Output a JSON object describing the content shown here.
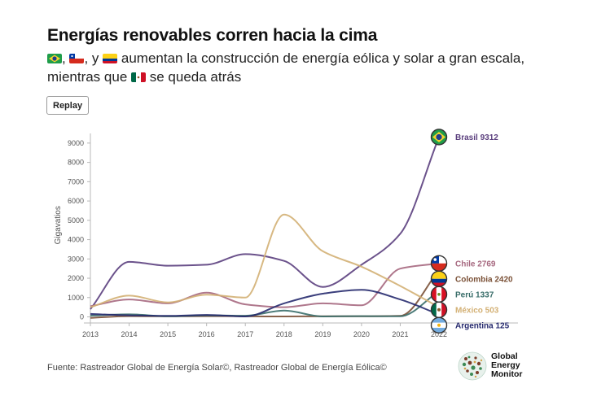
{
  "header": {
    "title": "Energías renovables corren hacia la cima",
    "subtitle_sep1": ",",
    "subtitle_sep2": ", y",
    "subtitle_mid": "aumentan la construcción de energía eólica y solar a gran escala, mientras que",
    "subtitle_end": "se queda atrás"
  },
  "toolbar": {
    "replay_label": "Replay"
  },
  "footer": {
    "source": "Fuente: Rastreador Global de Energía Solar©, Rastreador Global de Energía Eólica©",
    "logo_lines": [
      "Global",
      "Energy",
      "Monitor"
    ]
  },
  "flags": {
    "brazil": "brazil-flag-icon",
    "chile": "chile-flag-icon",
    "colombia": "colombia-flag-icon",
    "mexico": "mexico-flag-icon",
    "peru": "peru-flag-icon",
    "argentina": "argentina-flag-icon"
  },
  "chart_data": {
    "type": "line",
    "x": [
      2013,
      2014,
      2015,
      2016,
      2017,
      2018,
      2019,
      2020,
      2021,
      2022
    ],
    "xlim": [
      2013,
      2022
    ],
    "ylim": [
      0,
      9500
    ],
    "yticks": [
      0,
      1000,
      2000,
      3000,
      4000,
      5000,
      6000,
      7000,
      8000,
      9000
    ],
    "ylabel": "Gigavatios",
    "xlabel": "",
    "grid": false,
    "legend": "end-labels",
    "series": [
      {
        "name": "Brasil",
        "final_label": "9312",
        "color": "#5b3f7e",
        "flag": "brazil",
        "values": [
          400,
          2850,
          2650,
          2700,
          3250,
          2900,
          1550,
          2700,
          4300,
          9312
        ]
      },
      {
        "name": "Chile",
        "final_label": "2769",
        "color": "#a6687f",
        "flag": "chile",
        "values": [
          550,
          900,
          700,
          1250,
          650,
          500,
          700,
          600,
          2500,
          2769
        ]
      },
      {
        "name": "Colombia",
        "final_label": "2420",
        "color": "#7a5036",
        "flag": "colombia",
        "values": [
          -50,
          40,
          30,
          40,
          30,
          20,
          30,
          30,
          50,
          2420
        ]
      },
      {
        "name": "Perú",
        "final_label": "1337",
        "color": "#3a6e6a",
        "flag": "peru",
        "values": [
          60,
          130,
          30,
          80,
          60,
          330,
          20,
          40,
          30,
          1337
        ]
      },
      {
        "name": "México",
        "final_label": "503",
        "color": "#d3b074",
        "flag": "mexico",
        "values": [
          500,
          1100,
          750,
          1150,
          1000,
          5300,
          3400,
          2600,
          1600,
          503
        ]
      },
      {
        "name": "Argentina",
        "final_label": "125",
        "color": "#262a6e",
        "flag": "argentina",
        "values": [
          150,
          80,
          50,
          100,
          20,
          700,
          1200,
          1400,
          900,
          125
        ]
      }
    ]
  }
}
